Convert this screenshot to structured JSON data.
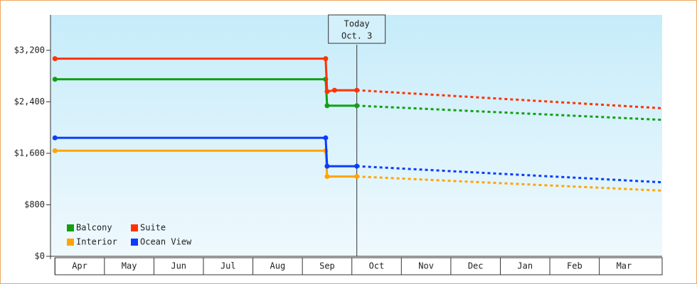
{
  "chart_data": {
    "type": "line",
    "categories": [
      "Apr",
      "May",
      "Jun",
      "Jul",
      "Aug",
      "Sep",
      "Oct",
      "Nov",
      "Dec",
      "Jan",
      "Feb",
      "Mar"
    ],
    "xlim": [
      -0.09,
      12.27
    ],
    "ylim": [
      0,
      3750
    ],
    "yticks": [
      {
        "value": 0,
        "label": "$0"
      },
      {
        "value": 800,
        "label": "$800"
      },
      {
        "value": 1600,
        "label": "$1,600"
      },
      {
        "value": 2400,
        "label": "$2,400"
      },
      {
        "value": 3200,
        "label": "$3,200"
      }
    ],
    "today": {
      "x": 6.1,
      "label": [
        "Today",
        "Oct. 3"
      ]
    },
    "series": [
      {
        "name": "Balcony",
        "color": "#11a011",
        "x": [
          0,
          5.47,
          5.5,
          6.1,
          12.27
        ],
        "values": [
          2750,
          2750,
          2340,
          2340,
          2120
        ]
      },
      {
        "name": "Suite",
        "color": "#ff3300",
        "x": [
          0,
          5.47,
          5.5,
          5.65,
          6.1,
          12.27
        ],
        "values": [
          3070,
          3070,
          2560,
          2580,
          2580,
          2300
        ]
      },
      {
        "name": "Interior",
        "color": "#ffa500",
        "x": [
          0,
          5.47,
          5.5,
          6.1,
          12.27
        ],
        "values": [
          1640,
          1640,
          1240,
          1240,
          1020
        ]
      },
      {
        "name": "Ocean View",
        "color": "#0a3cff",
        "x": [
          0,
          5.47,
          5.5,
          6.1,
          12.27
        ],
        "values": [
          1840,
          1840,
          1400,
          1400,
          1150
        ]
      }
    ]
  }
}
